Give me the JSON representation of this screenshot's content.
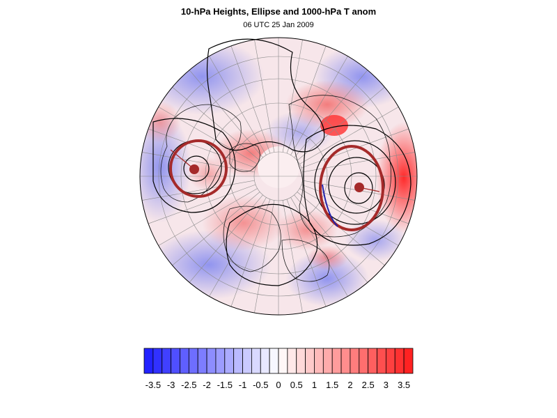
{
  "title": "10-hPa Heights, Ellipse and 1000-hPa T anom",
  "subtitle": "06 UTC 25 Jan 2009",
  "colorbar": {
    "levels": [
      -3.75,
      -3.5,
      -3.25,
      -3,
      -2.75,
      -2.5,
      -2.25,
      -2,
      -1.75,
      -1.5,
      -1.25,
      -1,
      -0.75,
      -0.5,
      -0.25,
      0,
      0.25,
      0.5,
      0.75,
      1,
      1.25,
      1.5,
      1.75,
      2,
      2.25,
      2.5,
      2.75,
      3,
      3.25,
      3.5,
      3.75
    ],
    "tick_labels": [
      "-3.5",
      "-3",
      "-2.5",
      "-2",
      "-1.5",
      "-1",
      "-0.5",
      "0",
      "0.5",
      "1",
      "1.5",
      "2",
      "2.5",
      "3",
      "3.5"
    ],
    "negative_color": "#1a1aff",
    "positive_color": "#ff1a1a",
    "neutral_color": "#ffffff"
  },
  "map": {
    "projection": "north polar orthographic",
    "contour_color": "#000000",
    "ellipse_color": "#a52a2a",
    "vortex_centers": [
      "western vortex",
      "eastern vortex"
    ]
  }
}
